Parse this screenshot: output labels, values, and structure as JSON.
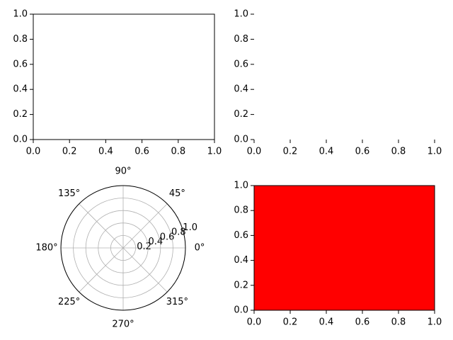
{
  "chart_data": [
    {
      "type": "axes",
      "frame": true,
      "xlim": [
        0,
        1
      ],
      "ylim": [
        0,
        1
      ],
      "xticks": [
        {
          "value": 0,
          "label": "0.0"
        },
        0.2,
        0.4,
        0.6,
        0.8,
        {
          "value": 1,
          "label": "1.0"
        }
      ],
      "yticks": [
        {
          "value": 0,
          "label": "0.0"
        },
        0.2,
        0.4,
        0.6,
        0.8,
        {
          "value": 1,
          "label": "1.0"
        }
      ]
    },
    {
      "type": "axes",
      "frame": false,
      "xlim": [
        0,
        1
      ],
      "ylim": [
        0,
        1
      ],
      "xticks": [
        {
          "value": 0,
          "label": "0.0"
        },
        0.2,
        0.4,
        0.6,
        0.8,
        {
          "value": 1,
          "label": "1.0"
        }
      ],
      "yticks": [
        {
          "value": 0,
          "label": "0.0"
        },
        0.2,
        0.4,
        0.6,
        0.8,
        {
          "value": 1,
          "label": "1.0"
        }
      ]
    },
    {
      "type": "polar",
      "grid": true,
      "rlim": [
        0,
        1
      ],
      "rticks": [
        0.2,
        0.4,
        0.6,
        0.8,
        {
          "value": 1,
          "label": "1.0"
        }
      ],
      "thetaticks": [
        {
          "value": 0,
          "label": "0°"
        },
        {
          "value": 45,
          "label": "45°"
        },
        {
          "value": 90,
          "label": "90°"
        },
        {
          "value": 135,
          "label": "135°"
        },
        {
          "value": 180,
          "label": "180°"
        },
        {
          "value": 225,
          "label": "225°"
        },
        {
          "value": 270,
          "label": "270°"
        },
        {
          "value": 315,
          "label": "315°"
        }
      ]
    },
    {
      "type": "axes",
      "frame": true,
      "facecolor": "#ff0000",
      "xlim": [
        0,
        1
      ],
      "ylim": [
        0,
        1
      ],
      "xticks": [
        {
          "value": 0,
          "label": "0.0"
        },
        0.2,
        0.4,
        0.6,
        0.8,
        {
          "value": 1,
          "label": "1.0"
        }
      ],
      "yticks": [
        {
          "value": 0,
          "label": "0.0"
        },
        0.2,
        0.4,
        0.6,
        0.8,
        {
          "value": 1,
          "label": "1.0"
        }
      ]
    }
  ]
}
